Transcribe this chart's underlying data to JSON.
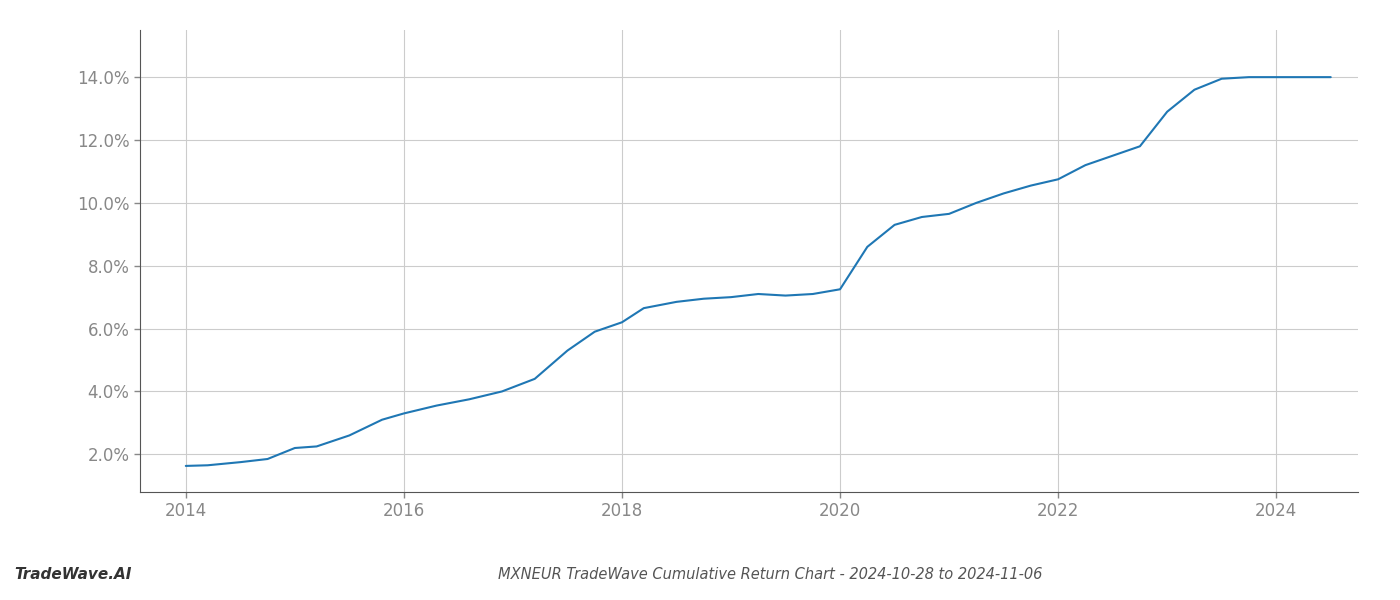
{
  "title": "MXNEUR TradeWave Cumulative Return Chart - 2024-10-28 to 2024-11-06",
  "watermark": "TradeWave.AI",
  "line_color": "#1f77b4",
  "line_width": 1.5,
  "background_color": "#ffffff",
  "grid_color": "#cccccc",
  "x_years": [
    2014.0,
    2014.2,
    2014.5,
    2014.75,
    2015.0,
    2015.2,
    2015.5,
    2015.8,
    2016.0,
    2016.3,
    2016.6,
    2016.9,
    2017.2,
    2017.5,
    2017.75,
    2018.0,
    2018.2,
    2018.5,
    2018.75,
    2019.0,
    2019.25,
    2019.5,
    2019.75,
    2020.0,
    2020.25,
    2020.5,
    2020.75,
    2021.0,
    2021.25,
    2021.5,
    2021.75,
    2022.0,
    2022.25,
    2022.5,
    2022.75,
    2023.0,
    2023.25,
    2023.5,
    2023.75,
    2024.0,
    2024.5
  ],
  "y_values": [
    1.63,
    1.65,
    1.75,
    1.85,
    2.2,
    2.25,
    2.6,
    3.1,
    3.3,
    3.55,
    3.75,
    4.0,
    4.4,
    5.3,
    5.9,
    6.2,
    6.65,
    6.85,
    6.95,
    7.0,
    7.1,
    7.05,
    7.1,
    7.25,
    8.6,
    9.3,
    9.55,
    9.65,
    10.0,
    10.3,
    10.55,
    10.75,
    11.2,
    11.5,
    11.8,
    12.9,
    13.6,
    13.95,
    14.0,
    14.0,
    14.0
  ],
  "xlim": [
    2013.58,
    2024.75
  ],
  "ylim": [
    0.8,
    15.5
  ],
  "yticks": [
    2.0,
    4.0,
    6.0,
    8.0,
    10.0,
    12.0,
    14.0
  ],
  "xticks": [
    2014,
    2016,
    2018,
    2020,
    2022,
    2024
  ],
  "title_fontsize": 10.5,
  "tick_fontsize": 12,
  "watermark_fontsize": 11,
  "axis_color": "#555555",
  "tick_color": "#888888",
  "spine_color": "#555555"
}
